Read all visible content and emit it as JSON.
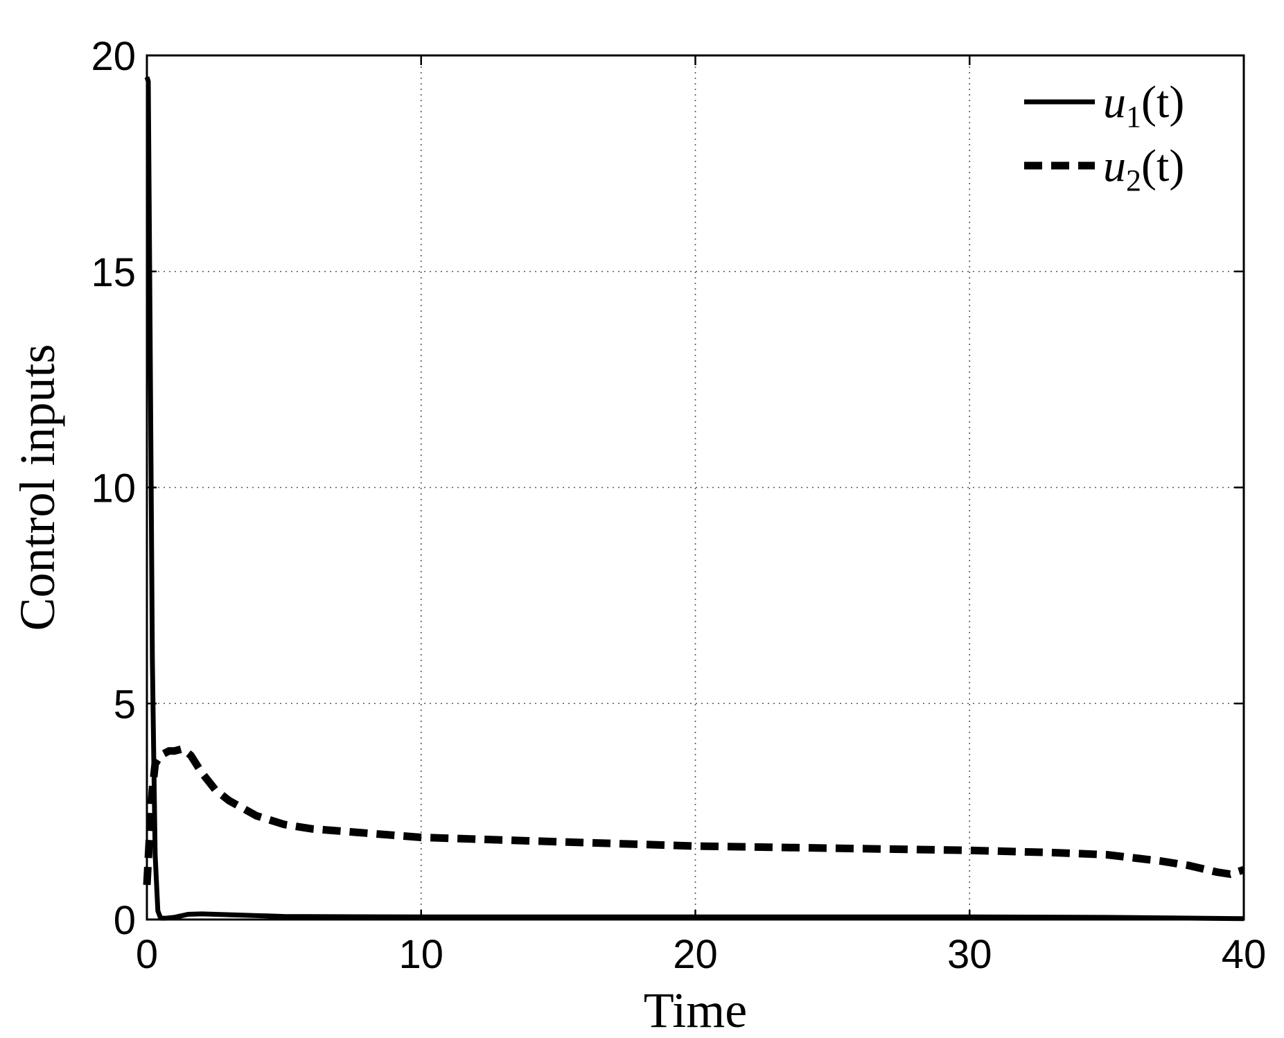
{
  "chart_data": {
    "type": "line",
    "title": "",
    "xlabel": "Time",
    "ylabel": "Control inputs",
    "xlim": [
      0,
      40
    ],
    "ylim": [
      0,
      20
    ],
    "xticks": [
      0,
      10,
      20,
      30,
      40
    ],
    "yticks": [
      0,
      5,
      10,
      15,
      20
    ],
    "xtick_labels": [
      "0",
      "10",
      "20",
      "30",
      "40"
    ],
    "ytick_labels": [
      "0",
      "5",
      "10",
      "15",
      "20"
    ],
    "grid": true,
    "legend_position": "top-right",
    "series": [
      {
        "name": "u_1(t)",
        "legend_base": "u",
        "legend_sub": "1",
        "legend_arg": "(t)",
        "style": "solid",
        "color": "#000000",
        "x": [
          0,
          0.05,
          0.1,
          0.2,
          0.3,
          0.4,
          0.5,
          0.7,
          1.0,
          1.5,
          2.0,
          3.0,
          5.0,
          10,
          20,
          30,
          35,
          40
        ],
        "y": [
          19.5,
          19.4,
          15.0,
          6.0,
          1.5,
          0.2,
          0.03,
          0.03,
          0.05,
          0.12,
          0.13,
          0.11,
          0.07,
          0.06,
          0.06,
          0.06,
          0.05,
          0.02
        ]
      },
      {
        "name": "u_2(t)",
        "legend_base": "u",
        "legend_sub": "2",
        "legend_arg": "(t)",
        "style": "dashed",
        "color": "#000000",
        "x": [
          0,
          0.1,
          0.2,
          0.3,
          0.5,
          0.8,
          1.0,
          1.3,
          1.6,
          2.0,
          2.5,
          3.0,
          4.0,
          5.0,
          6.0,
          8.0,
          10,
          15,
          20,
          25,
          30,
          33,
          35,
          37,
          38,
          39,
          39.5,
          40
        ],
        "y": [
          0.8,
          2.0,
          3.0,
          3.6,
          3.8,
          3.9,
          3.9,
          3.95,
          3.8,
          3.4,
          3.0,
          2.75,
          2.4,
          2.2,
          2.1,
          2.0,
          1.9,
          1.8,
          1.7,
          1.65,
          1.6,
          1.55,
          1.5,
          1.35,
          1.25,
          1.1,
          1.05,
          1.15
        ]
      }
    ]
  }
}
